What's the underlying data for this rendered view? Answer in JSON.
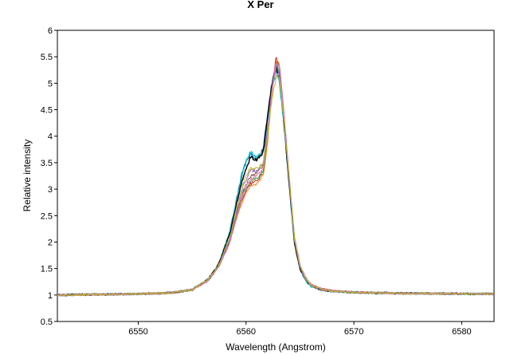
{
  "chart_data": {
    "type": "line",
    "title": "X Per",
    "xlabel": "Wavelength (Angstrom)",
    "ylabel": "Relative intensity",
    "xlim": [
      6542.5,
      6583
    ],
    "ylim": [
      0.5,
      6
    ],
    "xticks": [
      6550,
      6560,
      6570,
      6580
    ],
    "yticks": [
      0.5,
      1,
      1.5,
      2,
      2.5,
      3,
      3.5,
      4,
      4.5,
      5,
      5.5,
      6
    ],
    "ytick_labels": [
      "0.5",
      "1",
      "1.5",
      "2",
      "2.5",
      "3",
      "3.5",
      "4",
      "4.5",
      "5",
      "5.5",
      "6"
    ],
    "grid": false,
    "legend": "none",
    "profile_x": [
      6542.5,
      6550,
      6553,
      6555,
      6556.5,
      6557.5,
      6558.5,
      6559.2,
      6559.8,
      6560.4,
      6561.0,
      6561.6,
      6562.0,
      6562.4,
      6562.8,
      6563.1,
      6563.5,
      6564.0,
      6564.5,
      6565.0,
      6565.5,
      6566.0,
      6567.0,
      6568.0,
      6570.0,
      6575.0,
      6583.0
    ],
    "series": [
      {
        "color": "#1f77b4",
        "values": [
          1.0,
          1.02,
          1.04,
          1.1,
          1.3,
          1.6,
          2.2,
          2.9,
          3.45,
          3.65,
          3.55,
          3.75,
          4.4,
          5.0,
          5.25,
          5.1,
          4.3,
          3.1,
          2.0,
          1.5,
          1.3,
          1.18,
          1.1,
          1.07,
          1.05,
          1.03,
          1.02
        ]
      },
      {
        "color": "#17becf",
        "values": [
          1.0,
          1.02,
          1.04,
          1.1,
          1.3,
          1.6,
          2.2,
          2.85,
          3.4,
          3.7,
          3.6,
          3.7,
          4.35,
          4.95,
          5.15,
          5.0,
          4.25,
          3.05,
          1.95,
          1.48,
          1.28,
          1.17,
          1.1,
          1.07,
          1.05,
          1.03,
          1.02
        ]
      },
      {
        "color": "#000000",
        "values": [
          1.0,
          1.02,
          1.04,
          1.1,
          1.3,
          1.6,
          2.15,
          2.8,
          3.3,
          3.6,
          3.55,
          3.7,
          4.35,
          5.0,
          5.3,
          5.15,
          4.3,
          3.1,
          1.98,
          1.5,
          1.3,
          1.18,
          1.1,
          1.07,
          1.05,
          1.03,
          1.02
        ]
      },
      {
        "color": "#d62728",
        "values": [
          1.0,
          1.02,
          1.04,
          1.1,
          1.28,
          1.55,
          2.0,
          2.55,
          2.9,
          3.1,
          3.15,
          3.3,
          4.0,
          4.9,
          5.5,
          5.35,
          4.45,
          3.2,
          2.05,
          1.55,
          1.32,
          1.2,
          1.12,
          1.08,
          1.05,
          1.03,
          1.02
        ]
      },
      {
        "color": "#ff7f0e",
        "values": [
          1.0,
          1.02,
          1.04,
          1.1,
          1.28,
          1.55,
          2.0,
          2.5,
          2.85,
          3.05,
          3.1,
          3.25,
          3.9,
          4.8,
          5.4,
          5.3,
          4.45,
          3.25,
          2.08,
          1.57,
          1.33,
          1.2,
          1.12,
          1.08,
          1.05,
          1.03,
          1.02
        ]
      },
      {
        "color": "#2ca02c",
        "values": [
          1.0,
          1.02,
          1.04,
          1.1,
          1.28,
          1.55,
          2.0,
          2.55,
          2.95,
          3.15,
          3.2,
          3.35,
          4.0,
          4.85,
          5.35,
          5.25,
          4.4,
          3.2,
          2.05,
          1.55,
          1.32,
          1.19,
          1.11,
          1.08,
          1.05,
          1.03,
          1.02
        ]
      },
      {
        "color": "#8c564b",
        "values": [
          1.0,
          1.02,
          1.04,
          1.1,
          1.28,
          1.55,
          2.05,
          2.6,
          3.0,
          3.25,
          3.3,
          3.45,
          4.1,
          4.9,
          5.45,
          5.3,
          4.4,
          3.15,
          2.02,
          1.53,
          1.31,
          1.19,
          1.11,
          1.08,
          1.05,
          1.03,
          1.02
        ]
      },
      {
        "color": "#9467bd",
        "values": [
          1.0,
          1.02,
          1.04,
          1.1,
          1.28,
          1.55,
          2.05,
          2.65,
          3.1,
          3.35,
          3.35,
          3.5,
          4.15,
          4.9,
          5.3,
          5.2,
          4.35,
          3.15,
          2.02,
          1.52,
          1.3,
          1.18,
          1.1,
          1.07,
          1.05,
          1.03,
          1.02
        ]
      },
      {
        "color": "#e377c2",
        "values": [
          1.0,
          1.02,
          1.04,
          1.1,
          1.28,
          1.55,
          2.0,
          2.55,
          2.95,
          3.2,
          3.25,
          3.4,
          4.05,
          4.85,
          5.4,
          5.3,
          4.45,
          3.25,
          2.1,
          1.58,
          1.34,
          1.21,
          1.12,
          1.08,
          1.05,
          1.03,
          1.02
        ]
      },
      {
        "color": "#bcbd22",
        "values": [
          1.0,
          1.02,
          1.04,
          1.1,
          1.3,
          1.58,
          2.1,
          2.7,
          3.15,
          3.4,
          3.4,
          3.5,
          4.05,
          4.7,
          5.1,
          5.05,
          4.35,
          3.2,
          2.06,
          1.55,
          1.32,
          1.19,
          1.11,
          1.07,
          1.05,
          1.03,
          1.02
        ]
      }
    ]
  }
}
